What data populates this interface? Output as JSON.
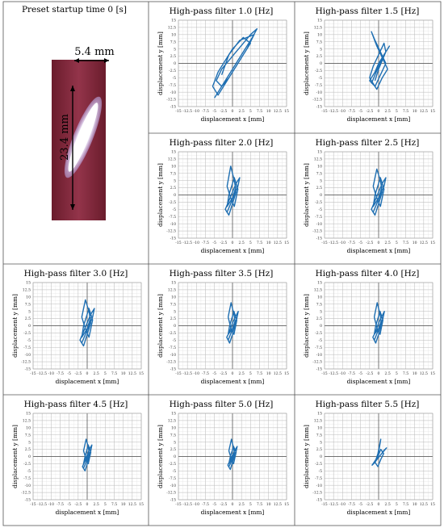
{
  "photo": {
    "title": "Preset startup time 0 [s]",
    "width_label": "5.4 mm",
    "height_label": "23.4 mm"
  },
  "chart_data": [
    {
      "type": "line",
      "title": "High-pass filter 1.0 [Hz]",
      "xlabel": "displacement x [mm]",
      "ylabel": "displacement y [mm]",
      "xlim": [
        -15,
        15
      ],
      "ylim": [
        -15,
        15
      ],
      "xticks": [
        -15,
        -12.5,
        -10,
        -7.5,
        -5,
        -2.5,
        0,
        2.5,
        5,
        7.5,
        10,
        12.5,
        15
      ],
      "yticks": [
        -15,
        -12.5,
        -10,
        -7.5,
        -5,
        -2.5,
        0,
        2.5,
        5,
        7.5,
        10,
        12.5,
        15
      ],
      "grid": true,
      "series": [
        {
          "color": "#1f6fb2",
          "x": [
            -5,
            -3.5,
            -2,
            -0.5,
            1,
            2.5,
            4,
            5.5,
            6.8,
            5,
            3,
            1,
            -1,
            -3,
            -4.5,
            -3,
            -1,
            1,
            3,
            5,
            3,
            0,
            -2,
            -4,
            -5.5,
            -4,
            -2,
            0,
            2,
            4,
            6,
            2,
            -1,
            -3
          ],
          "y": [
            -12,
            -9,
            -6,
            -3,
            0,
            3,
            6,
            9,
            12,
            10,
            7,
            4,
            1,
            -2,
            -6,
            -8,
            -5,
            -1,
            3,
            7,
            9,
            5,
            1,
            -3,
            -8,
            -11,
            -7,
            -3,
            1,
            5,
            10,
            8,
            3,
            -4
          ]
        }
      ]
    },
    {
      "type": "line",
      "title": "High-pass filter 1.5 [Hz]",
      "xlabel": "displacement x [mm]",
      "ylabel": "displacement y [mm]",
      "xlim": [
        -15,
        15
      ],
      "ylim": [
        -15,
        15
      ],
      "xticks": [
        -15,
        -12.5,
        -10,
        -7.5,
        -5,
        -2.5,
        0,
        2.5,
        5,
        7.5,
        10,
        12.5,
        15
      ],
      "yticks": [
        -15,
        -12.5,
        -10,
        -7.5,
        -5,
        -2.5,
        0,
        2.5,
        5,
        7.5,
        10,
        12.5,
        15
      ],
      "grid": true,
      "series": [
        {
          "color": "#1f6fb2",
          "x": [
            -2,
            -1,
            0,
            1,
            2.5,
            3,
            1.5,
            0,
            -1,
            -2.5,
            -1,
            0.5,
            2,
            0.5,
            -1,
            -2,
            -0.5,
            1,
            2.5,
            1,
            -0.5,
            -2.5,
            -1.5,
            0,
            1.5,
            2,
            0,
            -1
          ],
          "y": [
            -7,
            -4,
            -1,
            2,
            5,
            6,
            3,
            0,
            -3,
            -6,
            -8,
            -4,
            0,
            4,
            8,
            11,
            6,
            2,
            -2,
            -5,
            -9,
            -5,
            -1,
            3,
            7,
            4,
            -2,
            -6
          ]
        }
      ]
    },
    {
      "type": "line",
      "title": "High-pass filter 2.0 [Hz]",
      "xlabel": "displacement x [mm]",
      "ylabel": "displacement y [mm]",
      "xlim": [
        -15,
        15
      ],
      "ylim": [
        -15,
        15
      ],
      "xticks": [
        -15,
        -12.5,
        -10,
        -7.5,
        -5,
        -2.5,
        0,
        2.5,
        5,
        7.5,
        10,
        12.5,
        15
      ],
      "yticks": [
        -15,
        -12.5,
        -10,
        -7.5,
        -5,
        -2.5,
        0,
        2.5,
        5,
        7.5,
        10,
        12.5,
        15
      ],
      "grid": true,
      "series": [
        {
          "color": "#1f6fb2",
          "x": [
            -1.5,
            -0.5,
            0.5,
            1.5,
            2,
            1,
            0,
            -1,
            -2,
            -1,
            0,
            1,
            0.5,
            -0.5,
            -1.5,
            -0.5,
            0.5,
            1.5,
            0.5,
            -1,
            -1.5,
            0,
            1
          ],
          "y": [
            -6,
            -3,
            0,
            3,
            6,
            4,
            1,
            -2,
            -5,
            -7,
            -3,
            1,
            5,
            10,
            3,
            -1,
            -4,
            2,
            6,
            0,
            -4,
            -1,
            3
          ]
        }
      ]
    },
    {
      "type": "line",
      "title": "High-pass filter 2.5 [Hz]",
      "xlabel": "displacement x [mm]",
      "ylabel": "displacement y [mm]",
      "xlim": [
        -15,
        15
      ],
      "ylim": [
        -15,
        15
      ],
      "xticks": [
        -15,
        -12.5,
        -10,
        -7.5,
        -5,
        -2.5,
        0,
        2.5,
        5,
        7.5,
        10,
        12.5,
        15
      ],
      "yticks": [
        -15,
        -12.5,
        -10,
        -7.5,
        -5,
        -2.5,
        0,
        2.5,
        5,
        7.5,
        10,
        12.5,
        15
      ],
      "grid": true,
      "series": [
        {
          "color": "#1f6fb2",
          "x": [
            -1.5,
            -0.5,
            0.5,
            1.5,
            2,
            1,
            0,
            -1,
            -2,
            -1,
            0,
            1,
            0.5,
            -0.5,
            -1.5,
            -0.5,
            0.5,
            1.5,
            0.5,
            -1,
            -1.5,
            0,
            1
          ],
          "y": [
            -6,
            -3,
            0,
            3,
            6,
            4,
            1,
            -2,
            -5,
            -7,
            -3,
            1,
            5,
            9,
            3,
            -1,
            -4,
            2,
            6,
            0,
            -4,
            -1,
            3
          ]
        }
      ]
    },
    {
      "type": "line",
      "title": "High-pass filter 3.0 [Hz]",
      "xlabel": "displacement x [mm]",
      "ylabel": "displacement y [mm]",
      "xlim": [
        -15,
        15
      ],
      "ylim": [
        -15,
        15
      ],
      "xticks": [
        -15,
        -12.5,
        -10,
        -7.5,
        -5,
        -2.5,
        0,
        2.5,
        5,
        7.5,
        10,
        12.5,
        15
      ],
      "yticks": [
        -15,
        -12.5,
        -10,
        -7.5,
        -5,
        -2.5,
        0,
        2.5,
        5,
        7.5,
        10,
        12.5,
        15
      ],
      "grid": true,
      "series": [
        {
          "color": "#1f6fb2",
          "x": [
            -1.5,
            -0.5,
            0.5,
            1.5,
            2,
            1,
            0,
            -1,
            -2,
            -1,
            0,
            1,
            0.5,
            -0.5,
            -1.5,
            -0.5,
            0.5,
            1.5,
            0.5,
            -1,
            -1.5,
            0,
            1
          ],
          "y": [
            -6,
            -3,
            0,
            3,
            6,
            4,
            1,
            -2,
            -5,
            -7,
            -3,
            1,
            5,
            9,
            3,
            -1,
            -4,
            2,
            6,
            0,
            -4,
            -1,
            3
          ]
        }
      ]
    },
    {
      "type": "line",
      "title": "High-pass filter 3.5 [Hz]",
      "xlabel": "displacement x [mm]",
      "ylabel": "displacement y [mm]",
      "xlim": [
        -15,
        15
      ],
      "ylim": [
        -15,
        15
      ],
      "xticks": [
        -15,
        -12.5,
        -10,
        -7.5,
        -5,
        -2.5,
        0,
        2.5,
        5,
        7.5,
        10,
        12.5,
        15
      ],
      "yticks": [
        -15,
        -12.5,
        -10,
        -7.5,
        -5,
        -2.5,
        0,
        2.5,
        5,
        7.5,
        10,
        12.5,
        15
      ],
      "grid": true,
      "series": [
        {
          "color": "#1f6fb2",
          "x": [
            -1.2,
            -0.4,
            0.4,
            1.2,
            1.6,
            0.8,
            0,
            -0.8,
            -1.6,
            -0.8,
            0,
            0.8,
            0.4,
            -0.4,
            -1.2,
            -0.4,
            0.4,
            1.2,
            0.4,
            -0.8,
            -1.2,
            0,
            0.8
          ],
          "y": [
            -5,
            -2.5,
            0,
            2.5,
            5,
            3,
            1,
            -2,
            -4,
            -6,
            -3,
            1,
            4,
            8,
            3,
            -1,
            -3,
            2,
            5,
            0,
            -3,
            -1,
            2
          ]
        }
      ]
    },
    {
      "type": "line",
      "title": "High-pass filter 4.0 [Hz]",
      "xlabel": "displacement x [mm]",
      "ylabel": "displacement y [mm]",
      "xlim": [
        -15,
        15
      ],
      "ylim": [
        -15,
        15
      ],
      "xticks": [
        -15,
        -12.5,
        -10,
        -7.5,
        -5,
        -2.5,
        0,
        2.5,
        5,
        7.5,
        10,
        12.5,
        15
      ],
      "yticks": [
        -15,
        -12.5,
        -10,
        -7.5,
        -5,
        -2.5,
        0,
        2.5,
        5,
        7.5,
        10,
        12.5,
        15
      ],
      "grid": true,
      "series": [
        {
          "color": "#1f6fb2",
          "x": [
            -1.2,
            -0.4,
            0.4,
            1.2,
            1.6,
            0.8,
            0,
            -0.8,
            -1.6,
            -0.8,
            0,
            0.8,
            0.4,
            -0.4,
            -1.2,
            -0.4,
            0.4,
            1.2,
            0.4,
            -0.8,
            -1.2,
            0,
            0.8
          ],
          "y": [
            -5,
            -2.5,
            0,
            2.5,
            5,
            3,
            1,
            -2,
            -4,
            -6,
            -3,
            1,
            4,
            8,
            3,
            -1,
            -3,
            2,
            5,
            0,
            -3,
            -1,
            2
          ]
        }
      ]
    },
    {
      "type": "line",
      "title": "High-pass filter 4.5 [Hz]",
      "xlabel": "displacement x [mm]",
      "ylabel": "displacement y [mm]",
      "xlim": [
        -15,
        15
      ],
      "ylim": [
        -15,
        15
      ],
      "xticks": [
        -15,
        -12.5,
        -10,
        -7.5,
        -5,
        -2.5,
        0,
        2.5,
        5,
        7.5,
        10,
        12.5,
        15
      ],
      "yticks": [
        -15,
        -12.5,
        -10,
        -7.5,
        -5,
        -2.5,
        0,
        2.5,
        5,
        7.5,
        10,
        12.5,
        15
      ],
      "grid": true,
      "series": [
        {
          "color": "#1f6fb2",
          "x": [
            -1,
            -0.3,
            0.3,
            1,
            1.3,
            0.6,
            0,
            -0.6,
            -1.3,
            -0.6,
            0,
            0.6,
            0.3,
            -0.3,
            -1,
            -0.3,
            0.3,
            1,
            0.3,
            -0.6,
            -1,
            0,
            0.6
          ],
          "y": [
            -4,
            -2,
            0,
            2,
            4,
            2.5,
            0.5,
            -1.5,
            -3.5,
            -5,
            -2.5,
            0.5,
            3.5,
            6,
            2,
            -1,
            -2.5,
            1.5,
            4,
            0,
            -2.5,
            -0.5,
            1.5
          ]
        }
      ]
    },
    {
      "type": "line",
      "title": "High-pass filter 5.0 [Hz]",
      "xlabel": "displacement x [mm]",
      "ylabel": "displacement y [mm]",
      "xlim": [
        -15,
        15
      ],
      "ylim": [
        -15,
        15
      ],
      "xticks": [
        -15,
        -12.5,
        -10,
        -7.5,
        -5,
        -2.5,
        0,
        2.5,
        5,
        7.5,
        10,
        12.5,
        15
      ],
      "yticks": [
        -15,
        -12.5,
        -10,
        -7.5,
        -5,
        -2.5,
        0,
        2.5,
        5,
        7.5,
        10,
        12.5,
        15
      ],
      "grid": true,
      "series": [
        {
          "color": "#1f6fb2",
          "x": [
            -1,
            -0.3,
            0.3,
            1,
            1.3,
            0.6,
            0,
            -0.6,
            -1.3,
            -0.6,
            0,
            0.6,
            0.3,
            -0.3,
            -1,
            -0.3,
            0.3,
            1,
            0.3,
            -0.6,
            -1,
            0,
            0.6
          ],
          "y": [
            -3.5,
            -1.8,
            0,
            1.8,
            3.5,
            2,
            0.5,
            -1.2,
            -3,
            -4.5,
            -2,
            0.5,
            3,
            6,
            2,
            -1,
            -2.5,
            1.5,
            3.5,
            0,
            -2.5,
            -0.5,
            1.5
          ]
        }
      ]
    },
    {
      "type": "line",
      "title": "High-pass filter 5.5 [Hz]",
      "xlabel": "displacement x [mm]",
      "ylabel": "displacement y [mm]",
      "xlim": [
        -15,
        15
      ],
      "ylim": [
        -15,
        15
      ],
      "xticks": [
        -15,
        -12.5,
        -10,
        -7.5,
        -5,
        -2.5,
        0,
        2.5,
        5,
        7.5,
        10,
        12.5,
        15
      ],
      "yticks": [
        -15,
        -12.5,
        -10,
        -7.5,
        -5,
        -2.5,
        0,
        2.5,
        5,
        7.5,
        10,
        12.5,
        15
      ],
      "grid": true,
      "series": [
        {
          "color": "#1f6fb2",
          "x": [
            -1.8,
            -1,
            -0.2,
            0.6,
            1.4,
            2.2,
            1.4,
            0.6,
            -0.2,
            -1,
            -1.8,
            -1,
            -0.2,
            0.2,
            0.6,
            -0.2,
            -1,
            -0.2,
            0.6,
            1.4,
            0.6,
            -0.2
          ],
          "y": [
            -3,
            -1.8,
            -0.6,
            0.6,
            1.8,
            3,
            2,
            0.6,
            -0.6,
            -2,
            -3,
            -1.5,
            0,
            3,
            6,
            1,
            -2,
            -3.5,
            -1,
            1,
            2.5,
            0
          ]
        }
      ]
    }
  ]
}
